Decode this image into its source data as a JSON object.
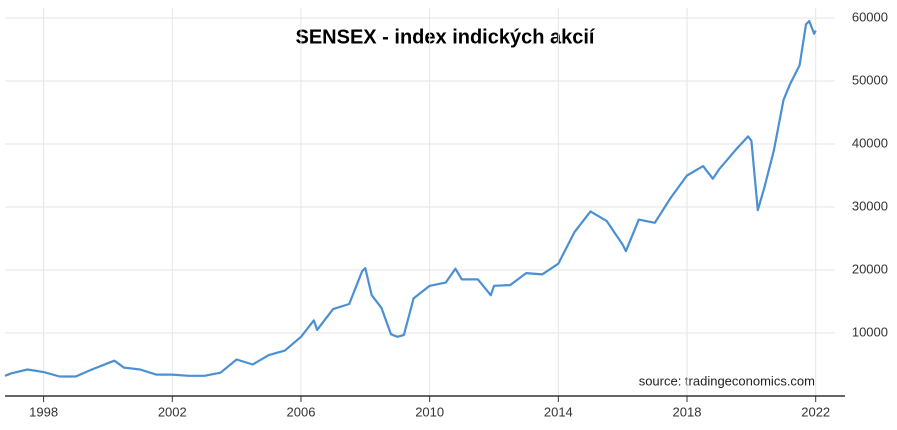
{
  "chart_data": {
    "type": "line",
    "title": "SENSEX - index indických akcií",
    "source": "source: tradingeconomics.com",
    "x": [
      1996.8,
      1997,
      1997.5,
      1998,
      1998.5,
      1999,
      1999.5,
      2000,
      2000.2,
      2000.5,
      2001,
      2001.5,
      2002,
      2002.5,
      2003,
      2003.5,
      2004,
      2004.5,
      2005,
      2005.5,
      2006,
      2006.4,
      2006.5,
      2007,
      2007.5,
      2007.9,
      2008,
      2008.2,
      2008.5,
      2008.8,
      2009,
      2009.2,
      2009.5,
      2010,
      2010.5,
      2010.8,
      2011,
      2011.5,
      2011.9,
      2012,
      2012.5,
      2013,
      2013.5,
      2014,
      2014.5,
      2015,
      2015.5,
      2016,
      2016.1,
      2016.5,
      2017,
      2017.5,
      2018,
      2018.5,
      2018.8,
      2019,
      2019.5,
      2019.9,
      2020,
      2020.2,
      2020.4,
      2020.7,
      2021,
      2021.2,
      2021.5,
      2021.7,
      2021.8,
      2021.95,
      2022
    ],
    "series": [
      {
        "name": "SENSEX",
        "color": "#4b90d2",
        "values": [
          3200,
          3600,
          4200,
          3800,
          3100,
          3100,
          4200,
          5200,
          5600,
          4500,
          4200,
          3400,
          3400,
          3200,
          3200,
          3700,
          5800,
          5000,
          6500,
          7200,
          9400,
          12000,
          10500,
          13800,
          14600,
          19800,
          20300,
          16000,
          14000,
          9800,
          9400,
          9700,
          15500,
          17500,
          18000,
          20200,
          18500,
          18500,
          16000,
          17500,
          17600,
          19500,
          19300,
          21000,
          26000,
          29300,
          27800,
          24000,
          23000,
          28000,
          27500,
          31500,
          35000,
          36500,
          34500,
          36000,
          39000,
          41200,
          40500,
          29500,
          33000,
          39000,
          47000,
          49500,
          52500,
          59000,
          59500,
          57500,
          58000
        ]
      }
    ],
    "xlim": [
      1996.8,
      2022.6
    ],
    "ylim": [
      0,
      60000
    ],
    "xticks": [
      1998,
      2002,
      2006,
      2010,
      2014,
      2018,
      2022
    ],
    "yticks": [
      10000,
      20000,
      30000,
      40000,
      50000,
      60000
    ],
    "grid": true
  }
}
